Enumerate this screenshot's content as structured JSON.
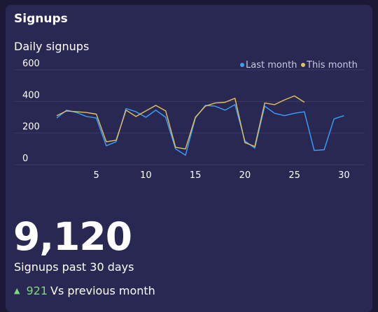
{
  "card": {
    "title": "Signups"
  },
  "chart_data": {
    "type": "line",
    "title": "Daily signups",
    "x": [
      1,
      2,
      3,
      4,
      5,
      6,
      7,
      8,
      9,
      10,
      11,
      12,
      13,
      14,
      15,
      16,
      17,
      18,
      19,
      20,
      21,
      22,
      23,
      24,
      25,
      26,
      27,
      28,
      29,
      30
    ],
    "x_ticks": [
      5,
      10,
      15,
      20,
      25,
      30
    ],
    "y_ticks": [
      0,
      200,
      400,
      600
    ],
    "ylim": [
      0,
      600
    ],
    "grid": true,
    "legend_position": "top-right",
    "series": [
      {
        "name": "Last month",
        "color": "#3aa0ff",
        "values": [
          295,
          345,
          330,
          305,
          295,
          120,
          145,
          355,
          335,
          300,
          345,
          300,
          100,
          60,
          295,
          375,
          370,
          345,
          380,
          150,
          105,
          370,
          325,
          310,
          325,
          335,
          90,
          95,
          290,
          310
        ]
      },
      {
        "name": "This month",
        "color": "#e5c15d",
        "values": [
          310,
          340,
          335,
          330,
          320,
          145,
          155,
          345,
          305,
          340,
          375,
          340,
          110,
          100,
          300,
          370,
          390,
          395,
          420,
          140,
          115,
          390,
          380,
          410,
          435,
          395,
          null,
          null,
          null,
          null
        ]
      }
    ]
  },
  "summary": {
    "total": "9,120",
    "caption": "Signups past 30 days",
    "delta": "921",
    "delta_label": "Vs previous month"
  },
  "colors": {
    "background": "#1b1936",
    "card": "#292852",
    "positive": "#7ed87e"
  }
}
